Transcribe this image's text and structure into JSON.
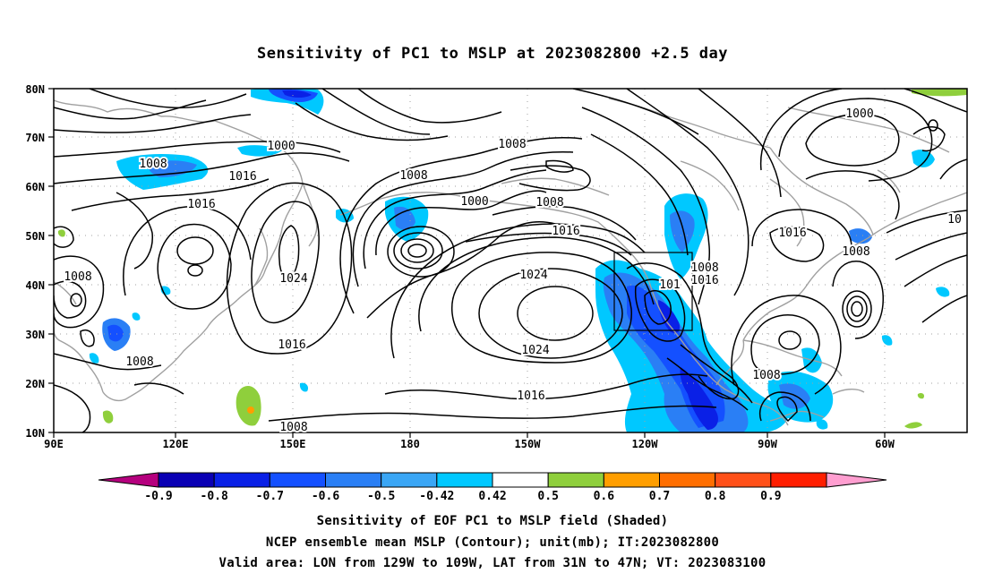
{
  "title": "Sensitivity of PC1 to MSLP at 2023082800 +2.5 day",
  "lat_labels": [
    "80N",
    "70N",
    "60N",
    "50N",
    "40N",
    "30N",
    "20N",
    "10N"
  ],
  "lon_labels": [
    "90E",
    "120E",
    "150E",
    "180",
    "150W",
    "120W",
    "90W",
    "60W"
  ],
  "contour_labels": [
    {
      "text": "1000",
      "role": "arctic"
    },
    {
      "text": "1000",
      "role": "bering"
    },
    {
      "text": "1000",
      "role": "aleutian"
    },
    {
      "text": "1008",
      "role": "siberia"
    },
    {
      "text": "1008",
      "role": "kamchatka"
    },
    {
      "text": "1008",
      "role": "alaska"
    },
    {
      "text": "1008",
      "role": "gulf-alaska"
    },
    {
      "text": "1008",
      "role": "west-asia"
    },
    {
      "text": "1008",
      "role": "south-asia"
    },
    {
      "text": "1008",
      "role": "southwest-us"
    },
    {
      "text": "1008",
      "role": "gulf-mexico"
    },
    {
      "text": "1008",
      "role": "atlantic"
    },
    {
      "text": "1008",
      "role": "pacific-south"
    },
    {
      "text": "1016",
      "role": "siberia"
    },
    {
      "text": "1016",
      "role": "west"
    },
    {
      "text": "1016",
      "role": "gulf-alaska"
    },
    {
      "text": "1016",
      "role": "rockies"
    },
    {
      "text": "1016",
      "role": "canada"
    },
    {
      "text": "1016",
      "role": "china"
    },
    {
      "text": "1016",
      "role": "pacific-south"
    },
    {
      "text": "1024",
      "role": "japan"
    },
    {
      "text": "1024",
      "role": "pacific-high-north"
    },
    {
      "text": "1024",
      "role": "pacific-high-south"
    },
    {
      "text": "101",
      "role": "california"
    },
    {
      "text": "10",
      "role": "edge"
    }
  ],
  "colorbar": {
    "colors": [
      "#b5007e",
      "#0a00b4",
      "#0a20e6",
      "#1450ff",
      "#2a7ff5",
      "#3aa6f5",
      "#00c8ff",
      "#ffffff",
      "#8fcf3c",
      "#ff9e00",
      "#ff6e00",
      "#ff5018",
      "#ff1e00",
      "#ff9ed0"
    ],
    "labels": [
      "-0.9",
      "-0.8",
      "-0.7",
      "-0.6",
      "-0.5",
      "-0.42",
      "0.42",
      "0.5",
      "0.6",
      "0.7",
      "0.8",
      "0.9"
    ]
  },
  "caption": {
    "line1": "Sensitivity of EOF PC1 to MSLP field (Shaded)",
    "line2": "NCEP ensemble mean MSLP (Contour); unit(mb); IT:2023082800",
    "line3": "Valid area: LON from 129W to 109W, LAT from 31N to 47N; VT: 2023083100"
  }
}
